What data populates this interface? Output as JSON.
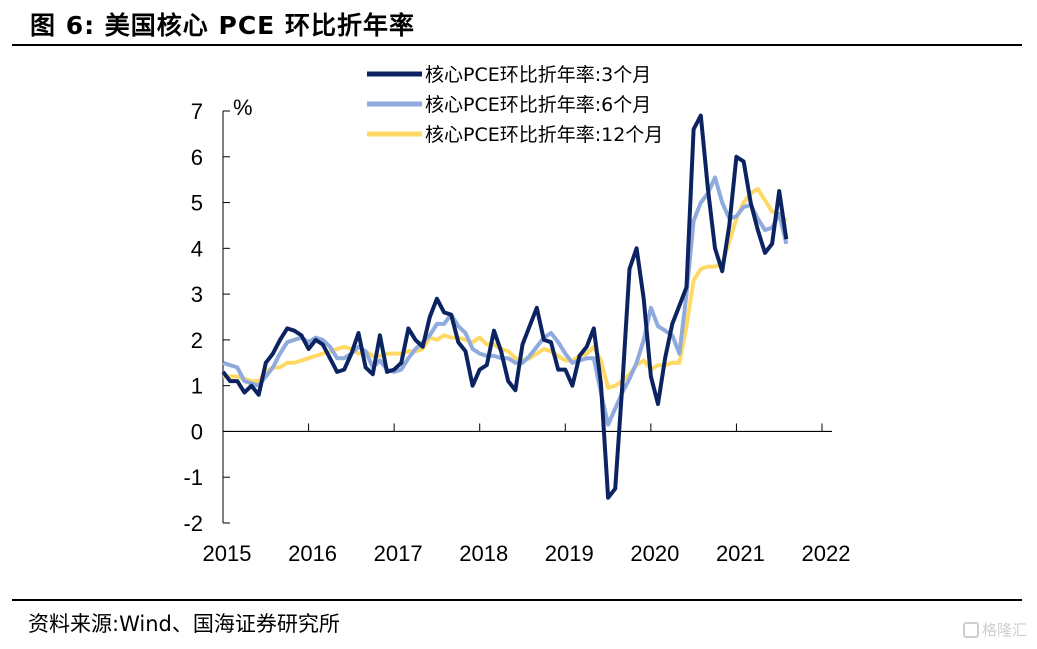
{
  "header": {
    "title": "图 6:  美国核心 PCE 环比折年率"
  },
  "footer": {
    "source": "资料来源:Wind、国海证券研究所",
    "watermark": "格隆汇"
  },
  "chart_data": {
    "type": "line",
    "title": "美国核心 PCE 环比折年率",
    "xlabel": "",
    "ylabel": "%",
    "ylim": [
      -2,
      7
    ],
    "yticks": [
      -2,
      -1,
      0,
      1,
      2,
      3,
      4,
      5,
      6,
      7
    ],
    "ytick_labels": [
      "-2",
      "-1",
      "0",
      "1",
      "2",
      "3",
      "4",
      "5",
      "6",
      "7"
    ],
    "xlim": [
      2015.0,
      2022.083
    ],
    "xticks": [
      2015,
      2016,
      2017,
      2018,
      2019,
      2020,
      2021,
      2022
    ],
    "xtick_labels": [
      "2015",
      "2016",
      "2017",
      "2018",
      "2019",
      "2020",
      "2021",
      "2022"
    ],
    "grid": false,
    "legend_position": "top-center",
    "x_start": "2015-01",
    "frequency": "monthly",
    "series": [
      {
        "name": "核心PCE环比折年率:3个月",
        "color": "#0b2461",
        "values": [
          1.3,
          1.1,
          1.1,
          0.85,
          1.0,
          0.8,
          1.5,
          1.7,
          2.0,
          2.25,
          2.2,
          2.1,
          1.8,
          2.0,
          1.9,
          1.6,
          1.3,
          1.35,
          1.7,
          2.15,
          1.4,
          1.25,
          2.1,
          1.3,
          1.35,
          1.5,
          2.25,
          2.0,
          1.85,
          2.5,
          2.9,
          2.6,
          2.55,
          1.95,
          1.75,
          1.0,
          1.35,
          1.45,
          2.2,
          1.75,
          1.1,
          0.9,
          1.9,
          2.3,
          2.7,
          2.0,
          1.95,
          1.35,
          1.35,
          1.0,
          1.65,
          1.85,
          2.25,
          1.05,
          -1.45,
          -1.25,
          1.0,
          3.55,
          4.0,
          2.9,
          1.2,
          0.6,
          1.6,
          2.35,
          2.75,
          3.15,
          6.6,
          6.9,
          5.3,
          4.0,
          3.5,
          4.5,
          6.0,
          5.9,
          5.0,
          4.4,
          3.9,
          4.1,
          5.25,
          4.2
        ]
      },
      {
        "name": "核心PCE环比折年率:6个月",
        "color": "#8faadc",
        "values": [
          1.5,
          1.45,
          1.4,
          1.1,
          1.05,
          1.0,
          1.2,
          1.4,
          1.7,
          1.95,
          2.0,
          2.05,
          1.95,
          2.05,
          2.0,
          1.85,
          1.6,
          1.6,
          1.7,
          1.85,
          1.75,
          1.4,
          1.55,
          1.35,
          1.3,
          1.35,
          1.6,
          1.8,
          1.95,
          2.1,
          2.35,
          2.35,
          2.55,
          2.3,
          2.15,
          1.8,
          1.7,
          1.65,
          1.65,
          1.6,
          1.6,
          1.5,
          1.5,
          1.65,
          1.85,
          2.05,
          2.15,
          1.95,
          1.7,
          1.5,
          1.55,
          1.6,
          1.6,
          0.85,
          0.15,
          0.5,
          0.85,
          1.15,
          1.5,
          2.0,
          2.7,
          2.3,
          2.2,
          2.1,
          1.7,
          3.0,
          4.6,
          5.0,
          5.2,
          5.55,
          5.0,
          4.65,
          4.7,
          4.9,
          4.95,
          4.65,
          4.4,
          4.45,
          4.75,
          4.1
        ]
      },
      {
        "name": "核心PCE环比折年率:12个月",
        "color": "#ffd966",
        "values": [
          1.2,
          1.2,
          1.2,
          1.15,
          1.1,
          1.1,
          1.3,
          1.4,
          1.4,
          1.5,
          1.5,
          1.55,
          1.6,
          1.65,
          1.7,
          1.75,
          1.8,
          1.85,
          1.8,
          1.7,
          1.75,
          1.65,
          1.65,
          1.7,
          1.7,
          1.7,
          1.75,
          1.75,
          1.8,
          2.05,
          2.0,
          2.1,
          2.05,
          2.05,
          2.0,
          1.95,
          2.05,
          1.9,
          1.9,
          1.8,
          1.75,
          1.6,
          1.55,
          1.6,
          1.7,
          1.8,
          1.75,
          1.65,
          1.55,
          1.55,
          1.65,
          1.7,
          1.85,
          1.55,
          0.95,
          1.0,
          1.1,
          1.25,
          1.45,
          1.55,
          1.35,
          1.45,
          1.45,
          1.5,
          1.5,
          2.3,
          3.3,
          3.55,
          3.6,
          3.6,
          3.65,
          4.15,
          4.65,
          5.0,
          5.2,
          5.3,
          5.05,
          4.8,
          4.75,
          4.6
        ]
      }
    ]
  }
}
